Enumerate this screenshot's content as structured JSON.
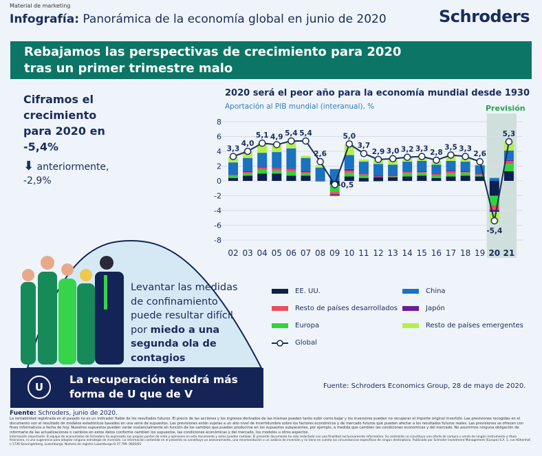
{
  "header": {
    "tag": "Material de marketing",
    "title_bold": "Infografía:",
    "title_rest": " Panorámica de la economía global en junio de 2020",
    "logo": "Schroders"
  },
  "banner": {
    "line1": "Rebajamos las perspectivas de crecimiento para 2020",
    "line2": "tras un primer trimestre malo"
  },
  "left": {
    "headline": "Ciframos el crecimiento para 2020 en -5,4%",
    "arrow_icon": "arrow-down",
    "previous": "anteriormente, -2,9%"
  },
  "illustration": {
    "message_plain": "Levantar las medidas de confinamiento puede resultar difícil por ",
    "message_bold": "miedo a una segunda ola de contagios"
  },
  "u_banner": {
    "letter": "U",
    "text": "La recuperación tendrá más forma de U que de V"
  },
  "sources": {
    "chart": "Fuente: Schroders Economics Group, 28 de mayo de 2020.",
    "label": "Fuente:",
    "main": " Schroders, junio de 2020."
  },
  "disclaimer": "La rentabilidad registrada en el pasado no es un indicador fiable de los resultados futuros. El precio de las acciones y los ingresos derivados de las mismas pueden tanto subir como bajar y los inversores pueden no recuperar el importe original invertido. Las previsiones recogidas en el documento son el resultado de modelos estadísticos basados en una serie de supuestos. Las previsiones están sujetas a un alto nivel de incertidumbre sobre los factores económicos y de mercado futuros que pueden afectar a los resultados futuros reales. Las previsiones se ofrecen con fines informativos a fecha de hoy. Nuestros supuestos pueden variar sustancialmente en función de los cambios que puedan producirse en los supuestos subyacentes, por ejemplo, a medida que cambien las condiciones económicas y del mercado. No asumimos ninguna obligación de informarle de las actualizaciones o cambios en estos datos conforme cambien los supuestos, las condiciones económicas y del mercado, los modelos u otros aspectos.",
  "disclaimer2": "Información importante: El equipo de economistas de Schroders ha expresado sus propios puntos de vista y opiniones en este documento y estos pueden cambiar. El presente documento ha sido redactado con una finalidad exclusivamente informativa. Su contenido no constituye una oferta de compra o venta de ningún instrumento o título financiero, ni una sugerencia para adoptar ninguna estrategia de inversión. La información contenida en el presente no constituye un asesoramiento, una recomendación o un análisis de inversión y no tiene en cuenta las circunstancias específicas de ningún destinatario. Publicado por Schroder Investment Management (Europe) S.A. 5, rue Höhenhof, L-1736 Senningerberg, Luxemburgo. Número de registro Luxemburgo B 37.799. 0620/ES",
  "chart_data": {
    "type": "bar",
    "title": "2020 será el peor año para la economía mundial desde 1930",
    "ylabel": "Aportación al PIB mundial (interanual), %",
    "forecast_label": "Previsión",
    "ylim": [
      -8,
      8
    ],
    "yticks": [
      8,
      6,
      4,
      2,
      0,
      -2,
      -4,
      -6,
      -8
    ],
    "categories": [
      "02",
      "03",
      "04",
      "05",
      "06",
      "07",
      "08",
      "09",
      "10",
      "11",
      "12",
      "13",
      "14",
      "15",
      "16",
      "17",
      "18",
      "19",
      "20",
      "21"
    ],
    "forecast_categories": [
      "20",
      "21"
    ],
    "series": [
      {
        "name": "EE. UU.",
        "color": "#0d1f4f",
        "values": [
          0.4,
          0.7,
          1.0,
          1.0,
          0.7,
          0.7,
          0.0,
          -0.5,
          0.6,
          0.4,
          0.5,
          0.5,
          0.6,
          0.7,
          0.4,
          0.6,
          0.7,
          0.6,
          -2.0,
          1.3
        ]
      },
      {
        "name": "Europa",
        "color": "#2fd43a",
        "values": [
          0.3,
          0.3,
          0.5,
          0.4,
          0.6,
          0.3,
          0.0,
          -1.0,
          0.5,
          0.3,
          -0.1,
          0.1,
          0.4,
          0.4,
          0.3,
          0.4,
          0.4,
          0.2,
          -1.3,
          1.0
        ]
      },
      {
        "name": "Resto de países desarrollados",
        "color": "#e8505b",
        "values": [
          0.1,
          0.2,
          0.3,
          0.3,
          0.3,
          0.2,
          -0.1,
          -0.3,
          0.3,
          0.2,
          0.1,
          0.1,
          0.2,
          0.1,
          0.2,
          0.3,
          0.1,
          0.1,
          -0.6,
          0.4
        ]
      },
      {
        "name": "Japón",
        "color": "#6a1b9a",
        "values": [
          0.0,
          0.1,
          0.1,
          0.1,
          0.1,
          0.1,
          0.0,
          -0.2,
          0.2,
          -0.1,
          0.1,
          0.1,
          0.0,
          0.1,
          0.1,
          0.1,
          0.1,
          0.1,
          -0.3,
          0.1
        ]
      },
      {
        "name": "China",
        "color": "#1a72c0",
        "values": [
          1.7,
          1.8,
          1.9,
          2.1,
          2.7,
          1.8,
          1.8,
          1.6,
          1.9,
          1.7,
          1.6,
          1.4,
          1.4,
          1.4,
          1.2,
          1.3,
          1.3,
          1.1,
          0.4,
          1.3
        ]
      },
      {
        "name": "Resto de países emergentes",
        "color": "#b5ef4c",
        "values": [
          0.8,
          0.9,
          1.3,
          1.0,
          1.0,
          0.3,
          0.3,
          -0.1,
          1.4,
          0.3,
          0.7,
          0.9,
          0.6,
          0.4,
          0.5,
          0.8,
          0.5,
          0.1,
          -1.4,
          1.2
        ]
      }
    ],
    "line": {
      "name": "Global",
      "values": [
        3.3,
        4.0,
        5.1,
        4.9,
        5.4,
        5.4,
        2.6,
        -0.5,
        5.0,
        3.7,
        2.9,
        3.0,
        3.2,
        3.3,
        2.8,
        3.5,
        3.3,
        2.6,
        -5.4,
        5.3
      ],
      "labels": [
        "3,3",
        "4,0",
        "5,1",
        "4,9",
        "5,4",
        "5,4",
        "2,6",
        "-0,5",
        "5,0",
        "3,7",
        "2,9",
        "3,0",
        "3,2",
        "3,3",
        "2,8",
        "3,5",
        "3,3",
        "2,6",
        "-5,4",
        "5,3"
      ]
    },
    "legend_order": [
      "EE. UU.",
      "China",
      "Resto de países desarrollados",
      "Japón",
      "Europa",
      "Resto de países emergentes",
      "Global"
    ],
    "grid": true
  }
}
